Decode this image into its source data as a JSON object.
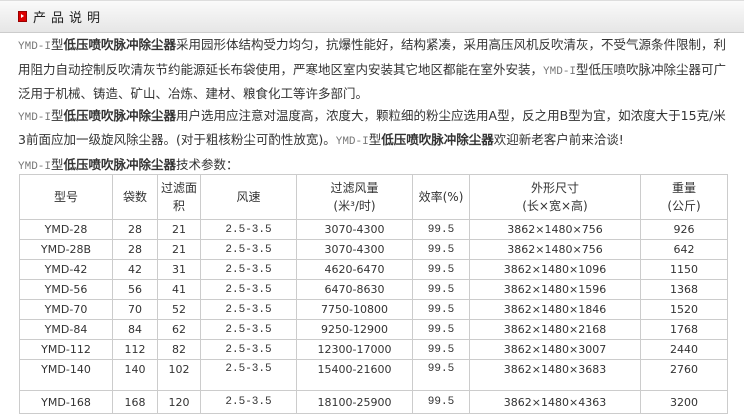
{
  "header": {
    "title": "产品说明",
    "icon": "red-square-arrow-icon"
  },
  "paragraphs": {
    "p1": {
      "model": "YMD-I",
      "suffix": "型",
      "name": "低压喷吹脉冲除尘器",
      "text1": "采用园形体结构受力均匀，抗爆性能好，结构紧凑，采用高压风机反吹清灰，不受气源条件限制，利用阻力自动控制反吹清灰节约能源延长布袋使用，严寒地区室内安装其它地区都能在室外安装，",
      "model2": "YMD-I",
      "text2": "型低压喷吹脉冲除尘器可广泛用于机械、铸造、矿山、冶炼、建材、粮食化工等许多部门。"
    },
    "p2": {
      "model": "YMD-I",
      "suffix": "型",
      "name": "低压喷吹脉冲除尘器",
      "text1": "用户选用应注意对温度高，浓度大，颗粒细的粉尘应选用A型，反之用B型为宜，如浓度大于15克/米3前面应加一级旋风除尘器。(对于粗核粉尘可酌性放宽)。",
      "model2": "YMD-I",
      "suffix2": "型",
      "name2": "低压喷吹脉冲除尘器",
      "text2": "欢迎新老客户前来洽谈!"
    },
    "p3": {
      "model": "YMD-I",
      "suffix": "型",
      "name": "低压喷吹脉冲除尘器",
      "text1": "技术参数："
    }
  },
  "table": {
    "headers": [
      "型号",
      "袋数",
      "过滤面积",
      "风速",
      "过滤风量\n(米³/时)",
      "效率(%)",
      "外形尺寸\n(长×宽×高)",
      "重量\n(公斤)"
    ],
    "rows": [
      [
        "YMD-28",
        "28",
        "21",
        "2.5-3.5",
        "3070-4300",
        "99.5",
        "3862×1480×756",
        "926"
      ],
      [
        "YMD-28B",
        "28",
        "21",
        "2.5-3.5",
        "3070-4300",
        "99.5",
        "3862×1480×756",
        "642"
      ],
      [
        "YMD-42",
        "42",
        "31",
        "2.5-3.5",
        "4620-6470",
        "99.5",
        "3862×1480×1096",
        "1150"
      ],
      [
        "YMD-56",
        "56",
        "41",
        "2.5-3.5",
        "6470-8630",
        "99.5",
        "3862×1480×1596",
        "1368"
      ],
      [
        "YMD-70",
        "70",
        "52",
        "2.5-3.5",
        "7750-10800",
        "99.5",
        "3862×1480×1846",
        "1520"
      ],
      [
        "YMD-84",
        "84",
        "62",
        "2.5-3.5",
        "9250-12900",
        "99.5",
        "3862×1480×2168",
        "1768"
      ],
      [
        "YMD-112",
        "112",
        "82",
        "2.5-3.5",
        "12300-17000",
        "99.5",
        "3862×1480×3007",
        "2440"
      ],
      [
        "YMD-140",
        "140",
        "102",
        "2.5-3.5",
        "15400-21600",
        "99.5",
        "3862×1480×3683",
        "2760"
      ],
      [
        "YMD-168",
        "168",
        "120",
        "2.5-3.5",
        "18100-25900",
        "99.5",
        "3862×1480×4363",
        "3200"
      ]
    ]
  }
}
